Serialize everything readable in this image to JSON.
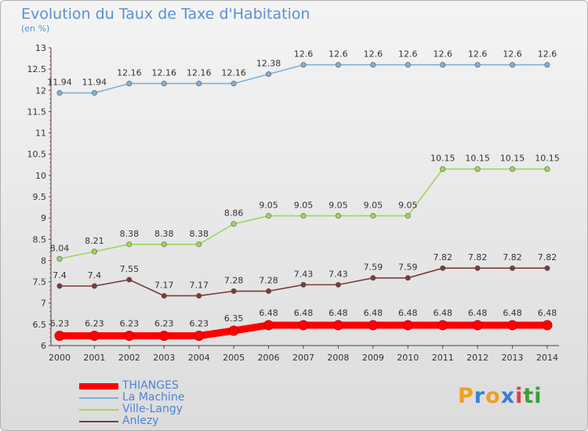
{
  "chart_data": {
    "type": "line",
    "title": "Evolution du Taux de Taxe d'Habitation",
    "subtitle": "(en %)",
    "x": [
      2000,
      2001,
      2002,
      2003,
      2004,
      2005,
      2006,
      2007,
      2008,
      2009,
      2010,
      2011,
      2012,
      2013,
      2014
    ],
    "ylim": [
      6,
      13
    ],
    "yticks": [
      "6",
      "6.5",
      "7",
      "7.5",
      "8",
      "8.5",
      "9",
      "9.5",
      "10",
      "10.5",
      "11",
      "11.5",
      "12",
      "12.5",
      "13"
    ],
    "grid": false,
    "legend_position": "bottom-left",
    "series": [
      {
        "name": "THIANGES",
        "color": "#ff0000",
        "values": [
          6.23,
          6.23,
          6.23,
          6.23,
          6.23,
          6.35,
          6.48,
          6.48,
          6.48,
          6.48,
          6.48,
          6.48,
          6.48,
          6.48,
          6.48
        ],
        "labels": [
          "6.23",
          "6.23",
          "6.23",
          "6.23",
          "6.23",
          "6.35",
          "6.48",
          "6.48",
          "6.48",
          "6.48",
          "6.48",
          "6.48",
          "6.48",
          "6.48",
          "6.48"
        ]
      },
      {
        "name": "La Machine",
        "color": "#7fb0d8",
        "values": [
          11.94,
          11.94,
          12.16,
          12.16,
          12.16,
          12.16,
          12.38,
          12.6,
          12.6,
          12.6,
          12.6,
          12.6,
          12.6,
          12.6,
          12.6
        ],
        "labels": [
          "11.94",
          "11.94",
          "12.16",
          "12.16",
          "12.16",
          "12.16",
          "12.38",
          "12.6",
          "12.6",
          "12.6",
          "12.6",
          "12.6",
          "12.6",
          "12.6",
          "12.6"
        ]
      },
      {
        "name": "Ville-Langy",
        "color": "#9fd65a",
        "values": [
          8.04,
          8.21,
          8.38,
          8.38,
          8.38,
          8.86,
          9.05,
          9.05,
          9.05,
          9.05,
          9.05,
          10.15,
          10.15,
          10.15,
          10.15
        ],
        "labels": [
          "8.04",
          "8.21",
          "8.38",
          "8.38",
          "8.38",
          "8.86",
          "9.05",
          "9.05",
          "9.05",
          "9.05",
          "9.05",
          "10.15",
          "10.15",
          "10.15",
          "10.15"
        ]
      },
      {
        "name": "Anlezy",
        "color": "#7a3a3a",
        "values": [
          7.4,
          7.4,
          7.55,
          7.17,
          7.17,
          7.28,
          7.28,
          7.43,
          7.43,
          7.59,
          7.59,
          7.82,
          7.82,
          7.82,
          7.82
        ],
        "labels": [
          "7.4",
          "7.4",
          "7.55",
          "7.17",
          "7.17",
          "7.28",
          "7.28",
          "7.43",
          "7.43",
          "7.59",
          "7.59",
          "7.82",
          "7.82",
          "7.82",
          "7.82"
        ]
      }
    ]
  },
  "logo": {
    "letters": [
      "P",
      "r",
      "o",
      "x",
      "i",
      "t",
      "i"
    ],
    "colors": [
      "#f0a020",
      "#3a7fd0",
      "#f0a020",
      "#3a7fd0",
      "#e04040",
      "#3a9f3a",
      "#3a9f3a"
    ]
  }
}
